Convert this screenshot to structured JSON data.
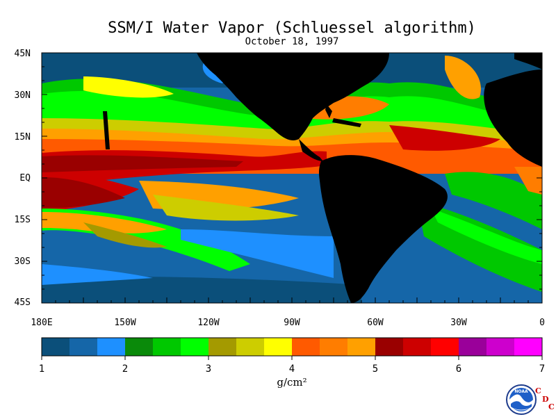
{
  "header": {
    "title": "SSM/I Water Vapor (Schluessel algorithm)",
    "date": "October 18, 1997"
  },
  "map": {
    "lat_labels": [
      "45N",
      "30N",
      "15N",
      "EQ",
      "15S",
      "30S",
      "45S"
    ],
    "lon_labels": [
      "180E",
      "150W",
      "120W",
      "90W",
      "60W",
      "30W",
      "0"
    ],
    "land_color": "#000000",
    "tick_color": "#000000"
  },
  "colorbar": {
    "labels": [
      "1",
      "2",
      "3",
      "4",
      "5",
      "6",
      "7"
    ],
    "colors": [
      "#0b4f7a",
      "#1566a8",
      "#1e90ff",
      "#0a8a0a",
      "#00c800",
      "#00ff00",
      "#a49a00",
      "#cdcd00",
      "#ffff00",
      "#ff5a00",
      "#ff7d00",
      "#ffa000",
      "#9a0000",
      "#cd0000",
      "#ff0000",
      "#9a009a",
      "#cd00cd",
      "#ff00ff"
    ],
    "unit": "g/cm²"
  },
  "branding": {
    "logo_text": "NOAA",
    "cdc_letters": [
      "C",
      "D",
      "C"
    ]
  }
}
